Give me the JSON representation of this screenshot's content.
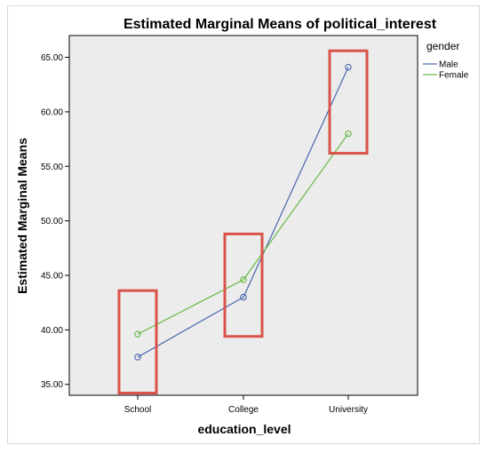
{
  "chart_data": {
    "type": "line",
    "title": "Estimated Marginal Means of political_interest",
    "xlabel": "education_level",
    "ylabel": "Estimated Marginal Means",
    "categories": [
      "School",
      "College",
      "University"
    ],
    "ylim": [
      34.0,
      67.0
    ],
    "yticks": [
      "35.00",
      "40.00",
      "45.00",
      "50.00",
      "55.00",
      "60.00",
      "65.00"
    ],
    "ytick_values": [
      35,
      40,
      45,
      50,
      55,
      60,
      65
    ],
    "grid": false,
    "legend_title": "gender",
    "legend_position": "right",
    "series": [
      {
        "name": "Male",
        "values": [
          37.5,
          43.0,
          64.1
        ],
        "color": "#4a66b0"
      },
      {
        "name": "Female",
        "values": [
          39.6,
          44.6,
          58.0
        ],
        "color": "#66b844"
      }
    ],
    "highlight_boxes": [
      {
        "category": "School",
        "range": [
          34.2,
          43.6
        ]
      },
      {
        "category": "College",
        "range": [
          39.4,
          48.8
        ]
      },
      {
        "category": "University",
        "range": [
          56.2,
          65.6
        ]
      }
    ],
    "highlight_color": "#d9534a",
    "plot_background": "#ececec"
  }
}
